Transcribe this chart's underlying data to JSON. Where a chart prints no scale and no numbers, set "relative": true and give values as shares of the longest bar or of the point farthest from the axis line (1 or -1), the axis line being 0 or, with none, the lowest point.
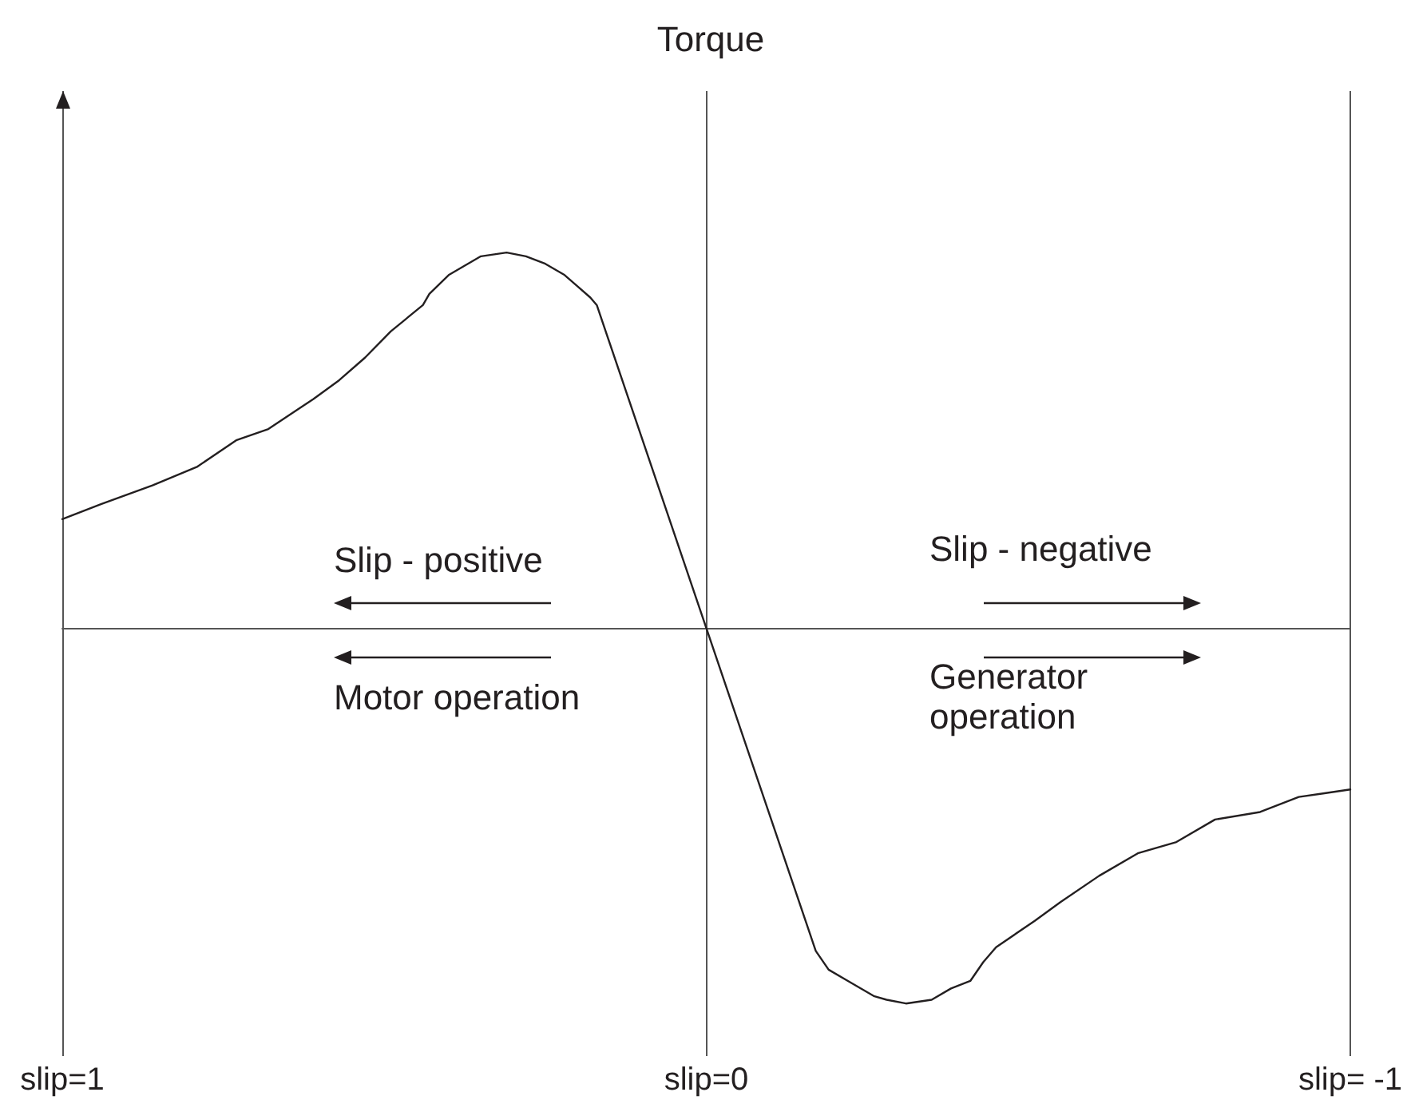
{
  "chart_data": {
    "type": "line",
    "relative": true,
    "color": "#231f20",
    "x": [
      1.0,
      0.94,
      0.86,
      0.79,
      0.73,
      0.68,
      0.61,
      0.57,
      0.53,
      0.49,
      0.44,
      0.43,
      0.4,
      0.35,
      0.31,
      0.28,
      0.25,
      0.22,
      0.2,
      0.18,
      0.17,
      0,
      -0.17,
      -0.19,
      -0.22,
      -0.26,
      -0.28,
      -0.31,
      -0.35,
      -0.38,
      -0.41,
      -0.43,
      -0.45,
      -0.51,
      -0.55,
      -0.61,
      -0.67,
      -0.73,
      -0.79,
      -0.86,
      -0.92,
      -0.96,
      -1.0
    ],
    "values": [
      0.29,
      0.33,
      0.38,
      0.43,
      0.5,
      0.53,
      0.61,
      0.66,
      0.72,
      0.79,
      0.86,
      0.89,
      0.94,
      0.99,
      1.0,
      0.99,
      0.97,
      0.94,
      0.91,
      0.88,
      0.86,
      0,
      -0.86,
      -0.91,
      -0.94,
      -0.98,
      -0.99,
      -1.0,
      -0.99,
      -0.96,
      -0.94,
      -0.89,
      -0.85,
      -0.78,
      -0.73,
      -0.66,
      -0.6,
      -0.57,
      -0.51,
      -0.49,
      -0.45,
      -0.44,
      -0.43
    ],
    "xlim": [
      1,
      -1
    ],
    "xticks": [
      {
        "value": 1,
        "label": "slip=1"
      },
      {
        "value": 0,
        "label": "slip=0"
      },
      {
        "value": -1,
        "label": "slip= -1"
      }
    ],
    "grid": "x",
    "annotations": [
      "Torque",
      "Slip - positive",
      "Motor operation",
      "Slip - negative",
      "Generator operation"
    ]
  }
}
